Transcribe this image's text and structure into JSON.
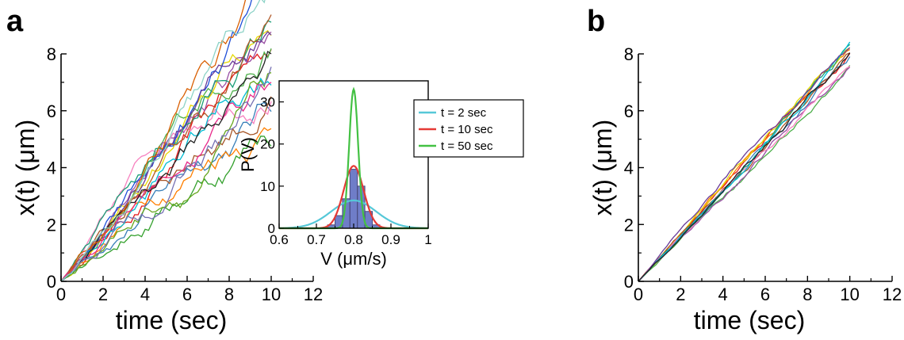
{
  "panels": {
    "a": {
      "letter": "a"
    },
    "b": {
      "letter": "b"
    }
  },
  "chart_data": [
    {
      "id": "a",
      "type": "line",
      "title": "",
      "xlabel": "time (sec)",
      "ylabel": "x(t) (μm)",
      "xlim": [
        0,
        12
      ],
      "ylim": [
        0,
        8
      ],
      "xticks": [
        0,
        2,
        4,
        6,
        8,
        10,
        12
      ],
      "yticks": [
        0,
        2,
        4,
        6,
        8
      ],
      "grid": false,
      "legend": "none",
      "series": [
        {
          "velocity": 0.8,
          "color": "#e41a1c"
        },
        {
          "velocity": 0.78,
          "color": "#377eb8"
        },
        {
          "velocity": 0.82,
          "color": "#4daf4a"
        },
        {
          "velocity": 0.76,
          "color": "#984ea3"
        },
        {
          "velocity": 0.79,
          "color": "#ff7f00"
        },
        {
          "velocity": 0.81,
          "color": "#e6d800"
        },
        {
          "velocity": 0.77,
          "color": "#a65628"
        },
        {
          "velocity": 0.83,
          "color": "#f781bf"
        },
        {
          "velocity": 0.8,
          "color": "#1b9e77"
        },
        {
          "velocity": 0.75,
          "color": "#1f4fd8"
        },
        {
          "velocity": 0.84,
          "color": "#6a3d9a"
        },
        {
          "velocity": 0.79,
          "color": "#33a02c"
        },
        {
          "velocity": 0.81,
          "color": "#b15928"
        },
        {
          "velocity": 0.78,
          "color": "#00bcd4"
        },
        {
          "velocity": 0.82,
          "color": "#e7298a"
        },
        {
          "velocity": 0.8,
          "color": "#222222"
        },
        {
          "velocity": 0.77,
          "color": "#66a61e"
        },
        {
          "velocity": 0.83,
          "color": "#d95f02"
        },
        {
          "velocity": 0.76,
          "color": "#7570b3"
        },
        {
          "velocity": 0.8,
          "color": "#8dd3c7"
        }
      ]
    },
    {
      "id": "a-inset",
      "type": "line",
      "title": "",
      "xlabel": "V (μm/s)",
      "ylabel": "P(V)",
      "xlim": [
        0.6,
        1.0
      ],
      "ylim": [
        0,
        35
      ],
      "xticks": [
        0.6,
        0.7,
        0.8,
        0.9,
        1
      ],
      "xtick_labels": [
        "0.6",
        "0.7",
        "0.8",
        "0.9",
        "1"
      ],
      "yticks": [
        0,
        10,
        20,
        30
      ],
      "legend": "top-right",
      "histogram": {
        "bin_centers": [
          0.74,
          0.76,
          0.78,
          0.8,
          0.82,
          0.84,
          0.86
        ],
        "values": [
          0.8,
          3.0,
          7.0,
          14.0,
          10.0,
          4.0,
          0.8
        ],
        "color": "#3f51b5"
      },
      "series": [
        {
          "name": "t = 2 sec",
          "mean": 0.8,
          "sd": 0.06,
          "peak": 6.6,
          "color": "#56c8d8"
        },
        {
          "name": "t = 10 sec",
          "mean": 0.8,
          "sd": 0.027,
          "peak": 14.8,
          "color": "#e53935"
        },
        {
          "name": "t = 50 sec",
          "mean": 0.8,
          "sd": 0.012,
          "peak": 33.0,
          "color": "#43c143"
        }
      ]
    },
    {
      "id": "b",
      "type": "line",
      "title": "",
      "xlabel": "time (sec)",
      "ylabel": "x(t) (μm)",
      "xlim": [
        0,
        12
      ],
      "ylim": [
        0,
        8
      ],
      "xticks": [
        0,
        2,
        4,
        6,
        8,
        10,
        12
      ],
      "yticks": [
        0,
        2,
        4,
        6,
        8
      ],
      "grid": false,
      "legend": "none",
      "series": [
        {
          "velocity": 0.8,
          "color": "#e41a1c"
        },
        {
          "velocity": 0.79,
          "color": "#377eb8"
        },
        {
          "velocity": 0.81,
          "color": "#4daf4a"
        },
        {
          "velocity": 0.78,
          "color": "#984ea3"
        },
        {
          "velocity": 0.8,
          "color": "#ff7f00"
        },
        {
          "velocity": 0.795,
          "color": "#e6d800"
        },
        {
          "velocity": 0.805,
          "color": "#a65628"
        },
        {
          "velocity": 0.785,
          "color": "#f781bf"
        },
        {
          "velocity": 0.8,
          "color": "#1b9e77"
        },
        {
          "velocity": 0.79,
          "color": "#00bcd4"
        },
        {
          "velocity": 0.81,
          "color": "#6a3d9a"
        },
        {
          "velocity": 0.8,
          "color": "#222222"
        }
      ]
    }
  ]
}
